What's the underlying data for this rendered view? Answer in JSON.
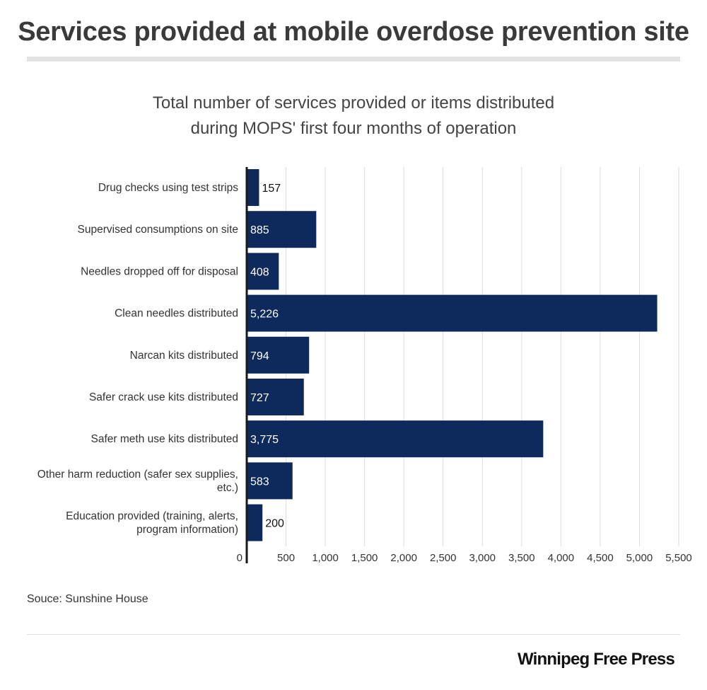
{
  "header": {
    "title": "Services provided at mobile overdose prevention site",
    "subtitle_line1": "Total number of services provided or items distributed",
    "subtitle_line2": "during MOPS' first four months of operation"
  },
  "footer": {
    "source": "Souce: Sunshine House",
    "brand": "Winnipeg Free Press"
  },
  "colors": {
    "bar": "#0e2a5c",
    "grid": "#dddddd",
    "axis": "#1a1a1a",
    "label_inside": "#ffffff",
    "label_outside": "#111111"
  },
  "chart_data": {
    "type": "bar",
    "orientation": "horizontal",
    "title": "Total number of services provided or items distributed during MOPS' first four months of operation",
    "categories": [
      [
        "Drug checks using test strips"
      ],
      [
        "Supervised consumptions on site"
      ],
      [
        "Needles dropped off for disposal"
      ],
      [
        "Clean needles distributed"
      ],
      [
        "Narcan kits distributed"
      ],
      [
        "Safer crack use kits distributed"
      ],
      [
        "Safer meth use kits distributed"
      ],
      [
        "Other harm reduction (safer sex supplies,",
        "etc.)"
      ],
      [
        "Education provided (training, alerts,",
        "program information)"
      ]
    ],
    "values": [
      157,
      885,
      408,
      5226,
      794,
      727,
      3775,
      583,
      200
    ],
    "value_labels": [
      "157",
      "885",
      "408",
      "5,226",
      "794",
      "727",
      "3,775",
      "583",
      "200"
    ],
    "xlim": [
      0,
      5500
    ],
    "xticks": [
      0,
      500,
      1000,
      1500,
      2000,
      2500,
      3000,
      3500,
      4000,
      4500,
      5000,
      5500
    ],
    "xtick_labels": [
      "0",
      "500",
      "1,000",
      "1,500",
      "2,000",
      "2,500",
      "3,000",
      "3,500",
      "4,000",
      "4,500",
      "5,000",
      "5,500"
    ],
    "xlabel": "",
    "ylabel": "",
    "grid": true
  }
}
